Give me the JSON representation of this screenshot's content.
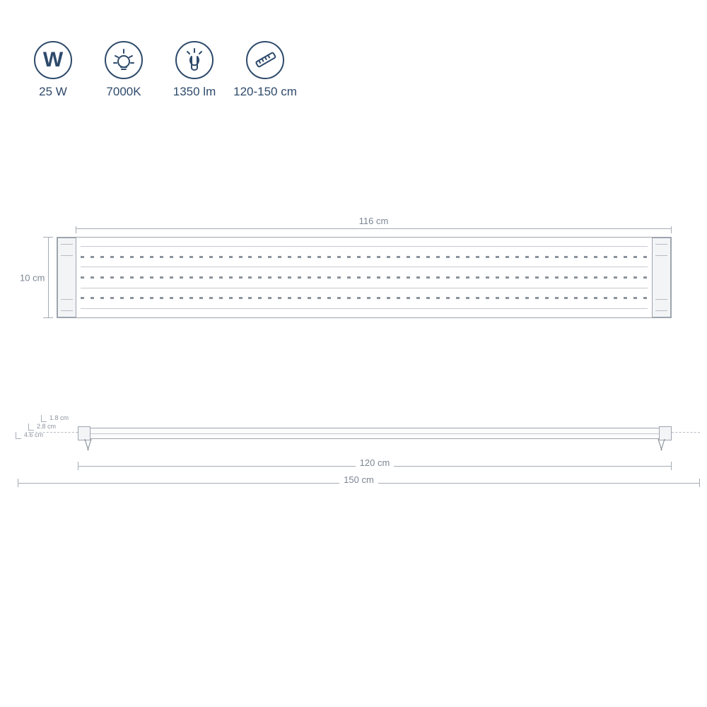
{
  "colors": {
    "primary": "#2e4a6b",
    "line": "#a5acb4",
    "muted_text": "#7b8693",
    "dot": "#8b939c",
    "background": "#ffffff"
  },
  "specs": {
    "watt": {
      "symbol": "W",
      "label": "25 W"
    },
    "kelvin": {
      "label": "7000K"
    },
    "lumen": {
      "label": "1350 lm"
    },
    "size_range": {
      "label": "120-150 cm"
    }
  },
  "top_view": {
    "width_label": "116 cm",
    "height_label": "10 cm",
    "led_rows": 3,
    "dots_per_row": 58
  },
  "side_view": {
    "dim_min": "120 cm",
    "dim_max": "150 cm",
    "tiny": {
      "a": "1.8 cm",
      "b": "2.8 cm",
      "c": "4.6 cm"
    }
  }
}
